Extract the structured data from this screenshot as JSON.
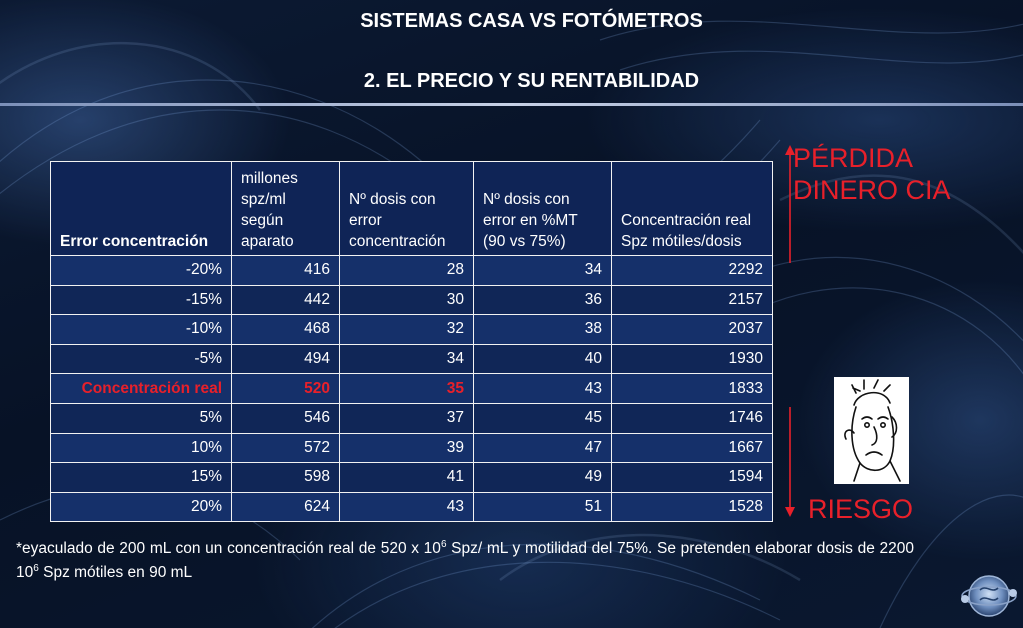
{
  "title_line1": "SISTEMAS CASA  VS FOTÓMETROS",
  "title_line2": "2. EL PRECIO Y SU RENTABILIDAD",
  "table": {
    "headers": [
      "Error concentración",
      "millones spz/ml según aparato",
      "Nº dosis con error concentración",
      "Nº dosis con error en %MT (90 vs 75%)",
      "Concentración real Spz mótiles/dosis"
    ],
    "rows": [
      [
        "-20%",
        "416",
        "28",
        "34",
        "2292"
      ],
      [
        "-15%",
        "442",
        "30",
        "36",
        "2157"
      ],
      [
        "-10%",
        "468",
        "32",
        "38",
        "2037"
      ],
      [
        "-5%",
        "494",
        "34",
        "40",
        "1930"
      ],
      [
        "Concentración real",
        "520",
        "35",
        "43",
        "1833"
      ],
      [
        "5%",
        "546",
        "37",
        "45",
        "1746"
      ],
      [
        "10%",
        "572",
        "39",
        "47",
        "1667"
      ],
      [
        "15%",
        "598",
        "41",
        "49",
        "1594"
      ],
      [
        "20%",
        "624",
        "43",
        "51",
        "1528"
      ]
    ]
  },
  "side_labels": {
    "perdida_line1": "PÉRDIDA",
    "perdida_line2": "DINERO CIA",
    "riesgo": "RIESGO"
  },
  "footnote": {
    "part1": "*eyaculado de 200 mL con un concentración real de 520 x 10",
    "sup1": "6",
    "part2": "  Spz/ mL y motilidad del 75%. Se pretenden elaborar dosis de  2200 10",
    "sup2": "6",
    "part3": "  Spz mótiles en 90 mL"
  },
  "colors": {
    "background": "#071226",
    "table_header": "#0f2456",
    "table_row": "#15306a",
    "highlight": "#e8202a",
    "text": "#ffffff"
  },
  "icons": [
    "worried-man-cartoon",
    "sperm-logo-icon",
    "double-arrow-icon"
  ]
}
